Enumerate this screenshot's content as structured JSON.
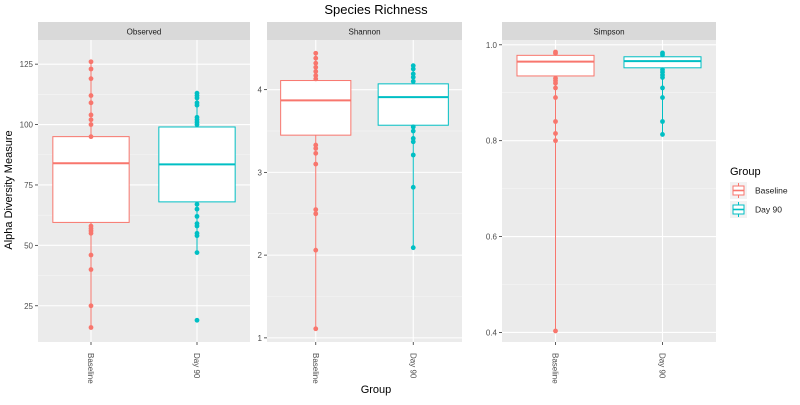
{
  "chart_data": {
    "type": "box",
    "title": "Species Richness",
    "xlabel": "Group",
    "ylabel": "Alpha Diversity Measure",
    "legend": {
      "title": "Group",
      "position": "right",
      "entries": [
        {
          "label": "Baseline",
          "color": "#f8766d"
        },
        {
          "label": "Day 90",
          "color": "#00bfc4"
        }
      ]
    },
    "categories": [
      "Baseline",
      "Day 90"
    ],
    "grid": true,
    "panels": [
      {
        "strip": "Observed",
        "ylim": [
          10,
          135
        ],
        "yticks": [
          25,
          50,
          75,
          100,
          125
        ],
        "ytick_labels": [
          "25",
          "50",
          "75",
          "100",
          "125"
        ],
        "boxes": [
          {
            "group": "Baseline",
            "q1": 59.5,
            "median": 84,
            "q3": 95,
            "whisker_low": 16,
            "whisker_high": 126,
            "points": [
              126,
              123,
              119,
              112,
              109,
              104,
              102,
              100,
              95,
              58,
              57,
              56,
              55,
              46,
              40,
              25,
              16
            ]
          },
          {
            "group": "Day 90",
            "q1": 68,
            "median": 83.5,
            "q3": 99,
            "whisker_low": 47,
            "whisker_high": 113,
            "points": [
              113,
              112,
              111,
              109,
              108,
              103,
              102,
              101,
              100,
              67,
              65,
              62,
              59,
              58,
              55,
              54,
              47,
              19
            ]
          }
        ]
      },
      {
        "strip": "Shannon",
        "ylim": [
          0.95,
          4.6
        ],
        "yticks": [
          1,
          2,
          3,
          4
        ],
        "ytick_labels": [
          "1",
          "2",
          "3",
          "4"
        ],
        "boxes": [
          {
            "group": "Baseline",
            "q1": 3.45,
            "median": 3.87,
            "q3": 4.11,
            "whisker_low": 1.11,
            "whisker_high": 4.44,
            "points": [
              4.44,
              4.38,
              4.32,
              4.27,
              4.22,
              4.17,
              4.13,
              3.33,
              3.29,
              3.23,
              3.1,
              2.55,
              2.5,
              2.06,
              1.11
            ]
          },
          {
            "group": "Day 90",
            "q1": 3.57,
            "median": 3.91,
            "q3": 4.07,
            "whisker_low": 2.09,
            "whisker_high": 4.29,
            "points": [
              4.29,
              4.25,
              4.19,
              4.15,
              4.1,
              3.55,
              3.5,
              3.41,
              3.37,
              3.21,
              2.82,
              2.09
            ]
          }
        ]
      },
      {
        "strip": "Simpson",
        "ylim": [
          0.38,
          1.01
        ],
        "yticks": [
          0.4,
          0.6,
          0.8,
          1.0
        ],
        "ytick_labels": [
          "0.4",
          "0.6",
          "0.8",
          "1.0"
        ],
        "boxes": [
          {
            "group": "Baseline",
            "q1": 0.935,
            "median": 0.965,
            "q3": 0.978,
            "whisker_low": 0.403,
            "whisker_high": 0.985,
            "points": [
              0.985,
              0.982,
              0.93,
              0.925,
              0.92,
              0.91,
              0.89,
              0.84,
              0.815,
              0.8,
              0.403
            ]
          },
          {
            "group": "Day 90",
            "q1": 0.952,
            "median": 0.966,
            "q3": 0.975,
            "whisker_low": 0.813,
            "whisker_high": 0.983,
            "points": [
              0.983,
              0.979,
              0.948,
              0.943,
              0.937,
              0.932,
              0.91,
              0.89,
              0.84,
              0.813
            ]
          }
        ]
      }
    ]
  }
}
